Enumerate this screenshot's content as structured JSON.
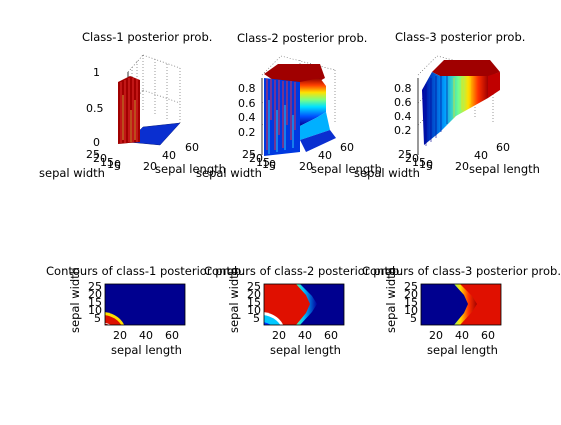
{
  "figure": {
    "background": "#ffffff"
  },
  "chart_data": [
    {
      "type": "surface",
      "title": "Class-1 posterior prob.",
      "xlabel": "sepal length",
      "ylabel": "sepal width",
      "x_ticks": [
        "20",
        "40",
        "60"
      ],
      "y_ticks": [
        "25",
        "20",
        "15",
        "10",
        "5"
      ],
      "z_ticks": [
        "0",
        "0.5",
        "1"
      ],
      "zlim": [
        0,
        1
      ],
      "grid": true,
      "colormap": "jet",
      "description_values": {
        "plateau_value": 1,
        "floor_value": 0
      }
    },
    {
      "type": "surface",
      "title": "Class-2 posterior prob.",
      "xlabel": "sepal length",
      "ylabel": "sepal width",
      "x_ticks": [
        "20",
        "40",
        "60"
      ],
      "y_ticks": [
        "25",
        "20",
        "15",
        "10",
        "5"
      ],
      "z_ticks": [
        "0.2",
        "0.4",
        "0.6",
        "0.8"
      ],
      "zlim": [
        0,
        1
      ],
      "grid": true,
      "colormap": "jet"
    },
    {
      "type": "surface",
      "title": "Class-3 posterior prob.",
      "xlabel": "sepal length",
      "ylabel": "sepal width",
      "x_ticks": [
        "20",
        "40",
        "60"
      ],
      "y_ticks": [
        "25",
        "20",
        "15",
        "10",
        "5"
      ],
      "z_ticks": [
        "0.2",
        "0.4",
        "0.6",
        "0.8"
      ],
      "zlim": [
        0,
        1
      ],
      "grid": true,
      "colormap": "jet"
    },
    {
      "type": "heatmap",
      "title": "Contours of class-1 posterior prob.",
      "xlabel": "sepal length",
      "ylabel": "sepal width",
      "x_ticks": [
        20,
        40,
        60
      ],
      "y_ticks": [
        5,
        10,
        15,
        20,
        25
      ],
      "xlim": [
        5,
        70
      ],
      "ylim": [
        0,
        27
      ],
      "colormap": "jet",
      "region": {
        "shape": "quarter-disc",
        "corner": "bottom-left",
        "x_extent": 18,
        "y_extent": 13,
        "value": 1
      }
    },
    {
      "type": "heatmap",
      "title": "Contours of class-2 posterior prob.",
      "xlabel": "sepal length",
      "ylabel": "sepal width",
      "x_ticks": [
        20,
        40,
        60
      ],
      "y_ticks": [
        5,
        10,
        15,
        20,
        25
      ],
      "xlim": [
        5,
        70
      ],
      "ylim": [
        0,
        27
      ],
      "colormap": "jet",
      "region": {
        "shape": "band",
        "x_boundary_min": 42,
        "x_boundary_max": 55,
        "tip_y": 11,
        "excluded_corner": {
          "x_extent": 18,
          "y_extent": 13
        },
        "value": 1
      }
    },
    {
      "type": "heatmap",
      "title": "Contours of class-3 posterior prob.",
      "xlabel": "sepal length",
      "ylabel": "sepal width",
      "x_ticks": [
        20,
        40,
        60
      ],
      "y_ticks": [
        5,
        10,
        15,
        20,
        25
      ],
      "xlim": [
        5,
        70
      ],
      "ylim": [
        0,
        27
      ],
      "colormap": "jet",
      "region": {
        "shape": "band",
        "x_boundary_min": 42,
        "x_boundary_max": 55,
        "tip_y": 11,
        "value": 1
      }
    }
  ]
}
